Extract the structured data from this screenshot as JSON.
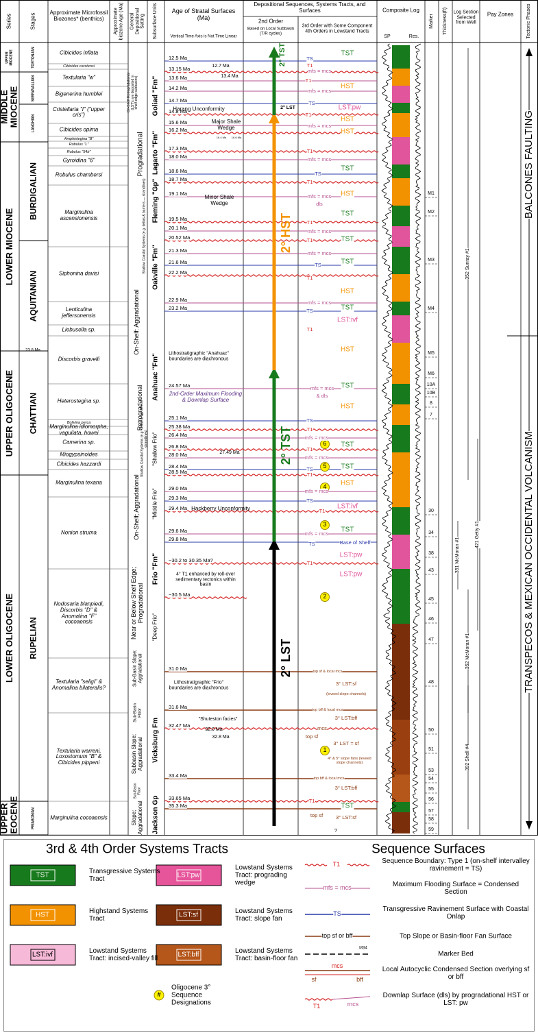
{
  "header": {
    "columns": [
      "Series",
      "Stages",
      "Approximate Microfossil Biozones* (benthics)",
      "Approximate biozone Age (Ma)",
      "General Depositional Setting",
      "Subsurface Units",
      "Age of Stratal Surfaces (Ma)",
      "Depositional Sequences, Systems Tracts, and Surfaces",
      "Composite Log",
      "Marker",
      "Thickness(ft)",
      "Log Section Selected from Well",
      "Pay Zones",
      "Tectonic Phases"
    ],
    "age_note": "Vertical Time Axis is Not Time Linear",
    "second_order": "2nd Order",
    "second_order_note": "Based on Local Subbasin (T/R cycles)",
    "third_order": "3rd Order with Some Component 4th Orders in Lowstand Tracts",
    "log_sp": "SP",
    "log_res": "Res."
  },
  "series": [
    "UPPER MIOCENE",
    "MIDDLE MIOCENE",
    "LOWER MIOCENE",
    "UPPER OLIGOCENE",
    "LOWER OLIGOCENE",
    "UPPER EOCENE"
  ],
  "series_boundary_age": "23.8 Ma",
  "stages": [
    "TORTON-IAN",
    "SERRAVALLIAN",
    "LANGHIAN",
    "BURDIGALIAN",
    "AQUITANIAN",
    "CHATTIAN",
    "RUPELIAN",
    "PRIABONIAN"
  ],
  "biozones": [
    "Cibicides inflata",
    "Cibicides carstensi",
    "Textularia \"w\"",
    "Bigenerina humblei",
    "Cristellaria \"I\" (\"upper cris\")",
    "Cibicides opima",
    "Amphistegina \"B\"",
    "Robulus \"L\"",
    "Robulus \"54b\"",
    "Gyroidina \"6\"",
    "Robulus chambersi",
    "Marginulina ascensionensis",
    "Siphonina davisi",
    "Lenticulina jeffersonensis",
    "Liebusella sp.",
    "Discorbis gravelli",
    "Heterostegina sp.",
    "Bolivina perca",
    "Marginulina idiomorpha, vaguilata, howei",
    "Camerina sp.",
    "Miogypsinoides",
    "Cibicides hazzardi",
    "Marginulina texana",
    "Nonion struma",
    "Nodosaria blanpiedi, Discorbis \"D\" & Anomalina \"F\" cocoaensis",
    "Textularia \"seligi\" & Anomalina bilateralis?",
    "Textularia warreni, Loxostomum \"B\" & Cibicides pippeni",
    "Marginulina cocoaensis"
  ],
  "settings": [
    "On-Shelf Retrogradational (LST's are deposited in shelf-edge subbasins)",
    "Progradational",
    "Shallow Coastal Systems (e.g. deltas & barriers — strandlines)",
    "On-Shelf: Aggradational",
    "Retrogradational",
    "Shallow Coastal Systems (e.g. deltas & barriers — strandlines)",
    "On-Shelf; Aggradational",
    "Near or Below Shelf Edge; Progradational",
    "Sub-Basin Slope; Aggradational",
    "Sub-Basin Floor",
    "Subbasin Slope; Aggradational",
    "Sub-Basin Floor",
    "Slope; Aggradational"
  ],
  "units": [
    "Goliad \"Fm\"",
    "Lagarto \"Fm\"",
    "Fleming \"Gp\"",
    "Oakville \"Fm\"",
    "Anahuac \"Fm\"",
    "\"Shallow Frio\"",
    "\"Middle Frio\"",
    "Frio \"Fm\"",
    "\"Deep Frio\"",
    "Vicksburg Fm",
    "Jackson Gp"
  ],
  "ages": [
    "12.5 Ma",
    "13.15 Ma",
    "13.6 Ma",
    "14.2 Ma",
    "14.7 Ma",
    "14.8 Ma",
    "15.6 Ma",
    "16.2 Ma",
    "17.3 Ma",
    "18.0 Ma",
    "18.6 Ma",
    "18.7 Ma",
    "19.1 Ma",
    "19.5 Ma",
    "20.1 Ma",
    "20.52 Ma",
    "21.3 Ma",
    "21.6 Ma",
    "22.2 Ma",
    "22.9 Ma",
    "23.2 Ma",
    "24.57 Ma",
    "25.1 Ma",
    "25.38 Ma",
    "26.4 Ma",
    "26.8 Ma",
    "28.0 Ma",
    "28.4 Ma",
    "28.5 Ma",
    "29.0 Ma",
    "29.3 Ma",
    "29.4 Ma",
    "29.6 Ma",
    "29.8 Ma",
    "~30.2 to 30.35 Ma?",
    "~30.5 Ma",
    "31.0 Ma",
    "31.6 Ma",
    "32.47 Ma",
    "33.4 Ma",
    "33.65 Ma",
    "35.3 Ma"
  ],
  "age_notes": [
    "12.7 Ma",
    "13.4 Ma",
    "Harang Unconformity",
    "Major Shale Wedge",
    "16.4 Ma",
    "16.6 Ma",
    "Minor Shale Wedge",
    "Lithostratigraphic \"Anahuac\" boundaries are diachronous",
    "2nd-Order Maximum Flooding & Downlap Surface",
    "27.49 Ma",
    "Hackberry Unconformity",
    "4° T1 enhanced by roll-over sedimentary tectonics within basin",
    "Lithostratigraphic \"Frio\" boundaries are diachronous",
    "\"Shuteston facies\"",
    "32.0 Ma",
    "32.8 Ma"
  ],
  "second_order_tracts": [
    "2° TST",
    "2° LST",
    "2° HST",
    "2° TST",
    "2° LST"
  ],
  "third_order": [
    "TST",
    "TS",
    "T1",
    "mfs = mcs",
    "HST",
    "T1",
    "mfs = mcs",
    "TS",
    "LST:pw",
    "T1",
    "HST",
    "mfs = mcs",
    "HST",
    "T1",
    "mfs = mcs",
    "TST",
    "TS",
    "T1",
    "HST",
    "mfs = mcs",
    "dls",
    "TST",
    "T1",
    "mfs = mcs",
    "TST",
    "T1",
    "mfs = mcs",
    "TST",
    "TS",
    "T1",
    "HST",
    "mfs = mcs",
    "TST",
    "TS",
    "LST:ivf",
    "T1",
    "HST",
    "mfs = mcs",
    "& dls",
    "TST",
    "HST",
    "TS",
    "T1",
    "mfs = mcs",
    "TST",
    "T1",
    "mfs = mcs",
    "TST",
    "TS",
    "T1",
    "HST",
    "mfs = mcs",
    "TS",
    "LST:ivf",
    "T1",
    "TST",
    "mfs = mcs",
    "TS",
    "Base of Shelf",
    "LST:pw",
    "T1",
    "LST:pw",
    "top sf & local mcs",
    "3° LST:sf",
    "(leveed slope channels)",
    "top bff & local mcs",
    "3° LST:bff",
    "mcs",
    "top sf",
    "3° LST = sf",
    "4° & 5° slope fans (leveed slope channels)",
    "top bff & local mcs",
    "3° LST:bff",
    "T1",
    "TST",
    "top sf",
    "3° LST:sf",
    "?"
  ],
  "sequences": [
    "6",
    "5",
    "4",
    "3",
    "2",
    "1"
  ],
  "markers": [
    "M1",
    "M2",
    "M3",
    "M4",
    "M5",
    "M6",
    "10A",
    "10B",
    "8",
    "7",
    "30",
    "34",
    "38",
    "43",
    "45",
    "46",
    "47",
    "48",
    "50",
    "51",
    "53",
    "54",
    "55",
    "56",
    "57",
    "58",
    "59"
  ],
  "wells": [
    "352 Sunray #1",
    "421 Getty #1",
    "351 McMoran #1",
    "352 McMoran #1",
    "392 Shell #4"
  ],
  "tectonics": [
    "BALCONES FAULTING",
    "TRANSPECOS & MEXICAN OCCIDENTAL VOLCANISM"
  ],
  "legend": {
    "tracts_title": "3rd & 4th Order Systems Tracts",
    "surfaces_title": "Sequence Surfaces",
    "tracts": [
      {
        "label": "TST",
        "text": "Transgressive Systems Tract"
      },
      {
        "label": "HST",
        "text": "Highstand Systems Tract"
      },
      {
        "label": "LST:ivf",
        "text": "Lowstand Systems Tract: incised-valley fill"
      },
      {
        "label": "LST:pw",
        "text": "Lowstand Systems Tract: prograding wedge"
      },
      {
        "label": "LST:sf",
        "text": "Lowstand Systems Tract: slope fan"
      },
      {
        "label": "LST:bff",
        "text": "Lowstand Systems Tract: basin-floor fan"
      }
    ],
    "sequence_symbol": "#",
    "sequence_text": "Oligocene 3° Sequence Designations",
    "surfaces": [
      {
        "symbol": [
          "T1"
        ],
        "text": "Sequence Boundary: Type 1 (on-shelf intervalley ravinement = TS)"
      },
      {
        "symbol": [
          "mfs = mcs"
        ],
        "text": "Maximum Flooding Surface = Condensed Section"
      },
      {
        "symbol": [
          "TS"
        ],
        "text": "Transgressive Ravinement Surface with Coastal Onlap"
      },
      {
        "symbol": [
          "top sf or bff"
        ],
        "text": "Top Slope or Basin-floor Fan Surface"
      },
      {
        "symbol": [
          "M34"
        ],
        "text": "Marker Bed"
      },
      {
        "symbol": [
          "sf",
          "mcs",
          "bff"
        ],
        "text": "Local Autocyclic Condensed Section overlying sf or bff"
      },
      {
        "symbol": [
          "T1",
          "mcs"
        ],
        "text": "Downlap Surface (dls) by progradational HST or LST: pw"
      }
    ]
  }
}
